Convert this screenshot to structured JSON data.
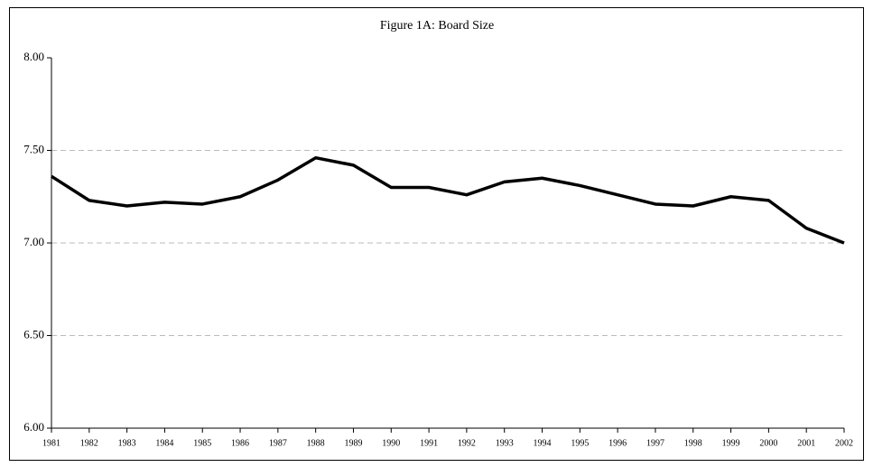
{
  "chart_data": {
    "type": "line",
    "title": "Figure 1A: Board Size",
    "categories": [
      "1981",
      "1982",
      "1983",
      "1984",
      "1985",
      "1986",
      "1987",
      "1988",
      "1989",
      "1990",
      "1991",
      "1992",
      "1993",
      "1994",
      "1995",
      "1996",
      "1997",
      "1998",
      "1999",
      "2000",
      "2001",
      "2002"
    ],
    "values": [
      7.36,
      7.23,
      7.2,
      7.22,
      7.21,
      7.25,
      7.34,
      7.46,
      7.42,
      7.3,
      7.3,
      7.26,
      7.33,
      7.35,
      7.31,
      7.26,
      7.21,
      7.2,
      7.25,
      7.23,
      7.08,
      7.0
    ],
    "color": "#000000",
    "ylim": [
      6,
      8
    ],
    "yticks": [
      {
        "value": 6,
        "label": "6.00"
      },
      {
        "value": 6.5,
        "label": "6.50"
      },
      {
        "value": 7,
        "label": "7.00"
      },
      {
        "value": 7.5,
        "label": "7.50"
      },
      {
        "value": 8,
        "label": "8.00"
      }
    ],
    "grid": true
  }
}
